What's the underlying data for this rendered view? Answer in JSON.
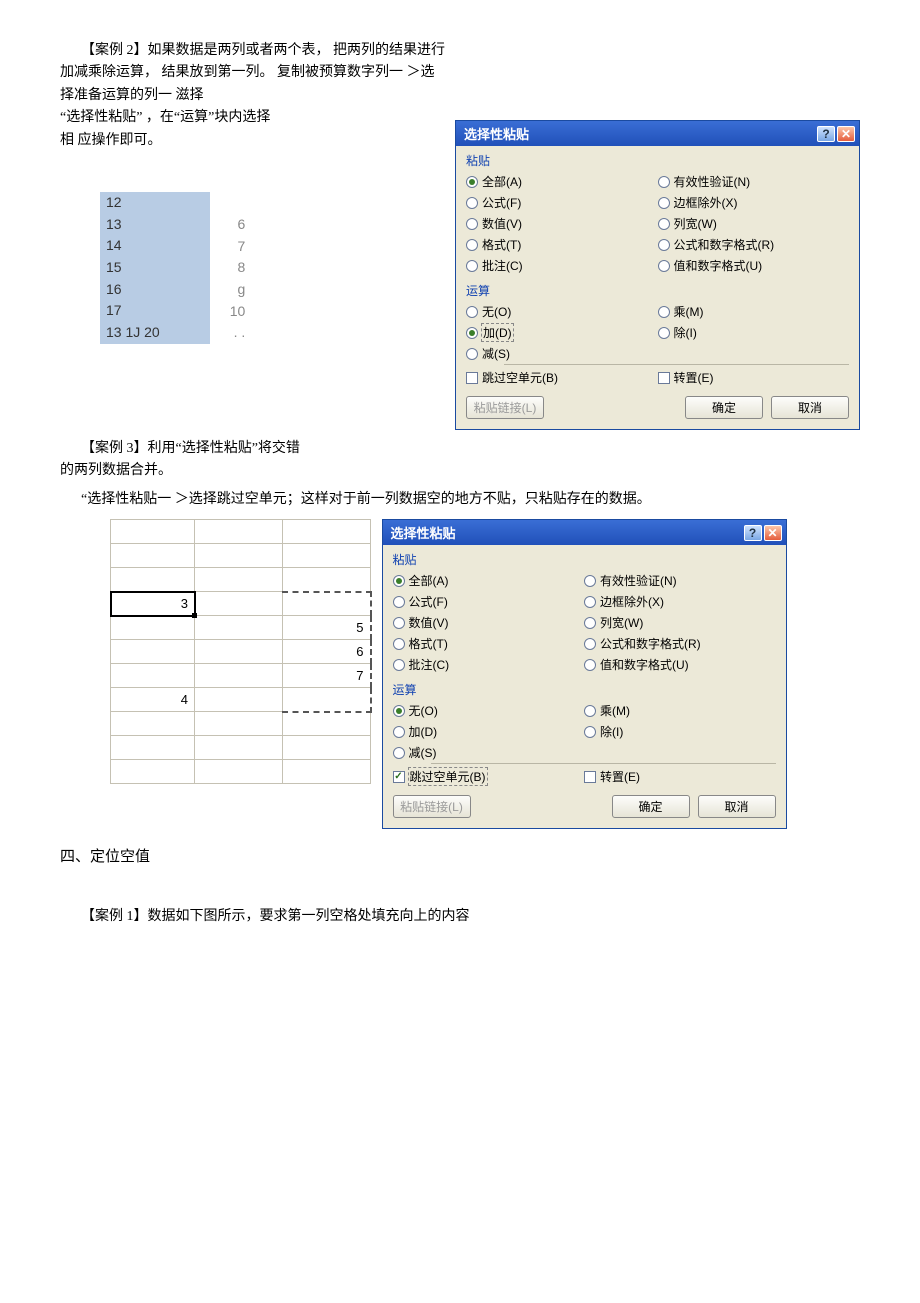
{
  "case2": {
    "title": "【案例 2】如果数据是两列或者两个表，  把两列的结果进行加减乘除运算，  结果放到第一列。 复制被预算数字列一  ＞选择准备运算的列一 滋择\n“选择性粘贴”  ，在“运算”块内选择\n相 应操作即可。"
  },
  "miniTable": {
    "colA": [
      "12",
      "13",
      "14",
      "15",
      "16",
      "17",
      "13 1J 20"
    ],
    "colB": [
      "6",
      "7",
      "8",
      "g",
      "10",
      ". ."
    ]
  },
  "dialog1": {
    "title": "选择性粘贴",
    "paste_label": "粘贴",
    "op_label": "运算",
    "paste_left": [
      {
        "t": "全部(A)",
        "sel": true
      },
      {
        "t": "公式(F)"
      },
      {
        "t": "数值(V)"
      },
      {
        "t": "格式(T)"
      },
      {
        "t": "批注(C)"
      }
    ],
    "paste_right": [
      {
        "t": "有效性验证(N)"
      },
      {
        "t": "边框除外(X)"
      },
      {
        "t": "列宽(W)"
      },
      {
        "t": "公式和数字格式(R)"
      },
      {
        "t": "值和数字格式(U)"
      }
    ],
    "op_left": [
      {
        "t": "无(O)"
      },
      {
        "t": "加(D)",
        "sel": true,
        "box": true
      },
      {
        "t": "减(S)"
      }
    ],
    "op_right": [
      {
        "t": "乘(M)"
      },
      {
        "t": "除(I)"
      }
    ],
    "skip": {
      "t": "跳过空单元(B)",
      "checked": false
    },
    "transpose": {
      "t": "转置(E)",
      "checked": false
    },
    "link": "粘贴链接(L)",
    "ok": "确定",
    "cancel": "取消"
  },
  "case3": {
    "title": "【案例 3】利用“选择性粘贴”将交错\n的两列数据合并。",
    "sub": "“选择性粘贴一  ＞选择跳过空单元；这样对于前一列数据空的地方不贴，只粘贴存在的数据。"
  },
  "sheet2": {
    "rows": [
      [
        "",
        "",
        ""
      ],
      [
        "",
        "",
        ""
      ],
      [
        "",
        "",
        ""
      ],
      [
        "3",
        "",
        ""
      ],
      [
        "",
        "",
        "5"
      ],
      [
        "",
        "",
        "6"
      ],
      [
        "",
        "",
        "7"
      ],
      [
        "4",
        "",
        ""
      ],
      [
        "",
        "",
        ""
      ],
      [
        "",
        "",
        ""
      ],
      [
        "",
        "",
        ""
      ]
    ],
    "cursor_row": 3,
    "cursor_col": 0,
    "marquee_col": 2,
    "marquee_start": 3,
    "marquee_end": 7
  },
  "dialog2": {
    "title": "选择性粘贴",
    "paste_label": "粘贴",
    "op_label": "运算",
    "paste_left": [
      {
        "t": "全部(A)",
        "sel": true
      },
      {
        "t": "公式(F)"
      },
      {
        "t": "数值(V)"
      },
      {
        "t": "格式(T)"
      },
      {
        "t": "批注(C)"
      }
    ],
    "paste_right": [
      {
        "t": "有效性验证(N)"
      },
      {
        "t": "边框除外(X)"
      },
      {
        "t": "列宽(W)"
      },
      {
        "t": "公式和数字格式(R)"
      },
      {
        "t": "值和数字格式(U)"
      }
    ],
    "op_left": [
      {
        "t": "无(O)",
        "sel": true
      },
      {
        "t": "加(D)"
      },
      {
        "t": "减(S)"
      }
    ],
    "op_right": [
      {
        "t": "乘(M)"
      },
      {
        "t": "除(I)"
      }
    ],
    "skip": {
      "t": "跳过空单元(B)",
      "checked": true,
      "box": true
    },
    "transpose": {
      "t": "转置(E)",
      "checked": false
    },
    "link": "粘贴链接(L)",
    "ok": "确定",
    "cancel": "取消"
  },
  "section4": "四、定位空值",
  "case1b": "【案例 1】数据如下图所示，要求第一列空格处填充向上的内容"
}
